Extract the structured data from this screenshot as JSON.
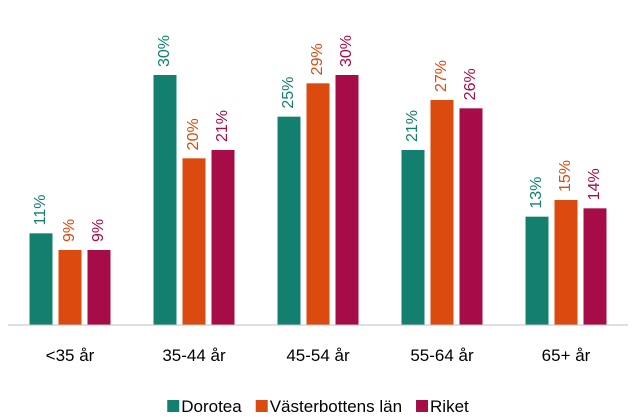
{
  "chart_data": {
    "type": "bar",
    "categories": [
      "<35 år",
      "35-44 år",
      "45-54 år",
      "55-64 år",
      "65+ år"
    ],
    "series": [
      {
        "name": "Dorotea",
        "color": "#13806f",
        "values": [
          11,
          30,
          25,
          21,
          13
        ],
        "value_labels": [
          "11%",
          "30%",
          "25%",
          "21%",
          "13%"
        ]
      },
      {
        "name": "Västerbottens län",
        "color": "#db4a0f",
        "values": [
          9,
          20,
          29,
          27,
          15
        ],
        "value_labels": [
          "9%",
          "20%",
          "29%",
          "27%",
          "15%"
        ]
      },
      {
        "name": "Riket",
        "color": "#a60c48",
        "values": [
          9,
          21,
          30,
          26,
          14
        ],
        "value_labels": [
          "9%",
          "21%",
          "30%",
          "26%",
          "14%"
        ]
      }
    ],
    "ylim": [
      0,
      36
    ],
    "legend": "bottom"
  }
}
